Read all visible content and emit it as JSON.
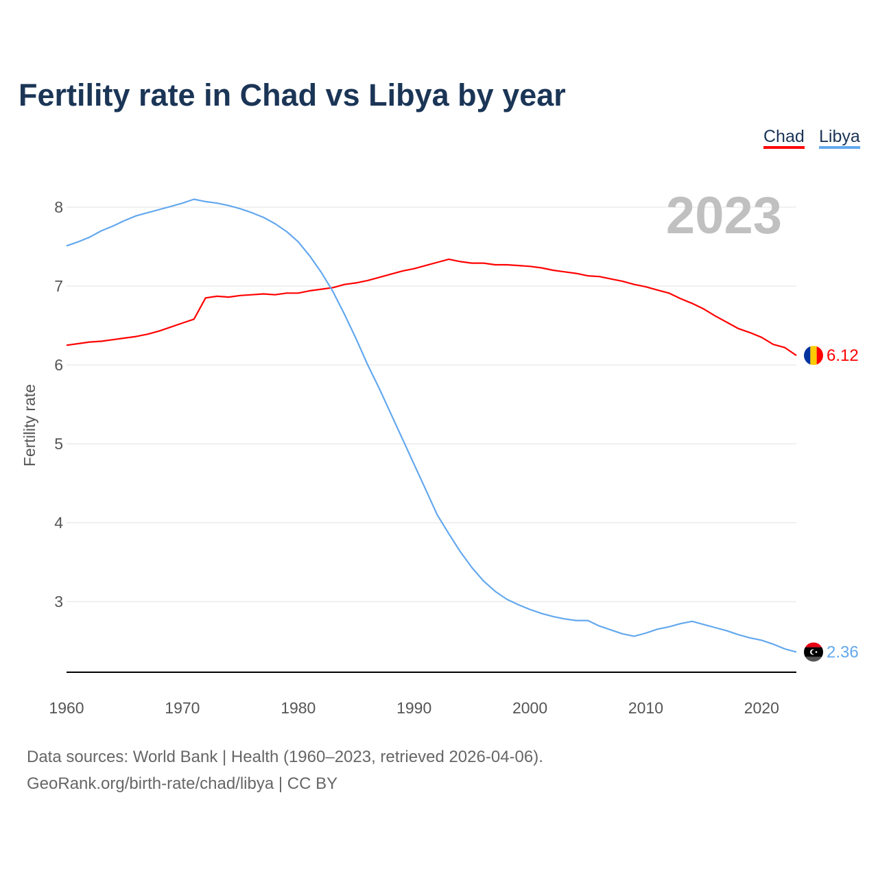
{
  "chart_data": {
    "type": "line",
    "title": "Fertility rate in Chad vs Libya by year",
    "ylabel": "Fertility rate",
    "xlabel": "",
    "xlim": [
      1960,
      2023
    ],
    "ylim": [
      2.1,
      8.6
    ],
    "x_ticks": [
      "1960",
      "1970",
      "1980",
      "1990",
      "2000",
      "2010",
      "2020"
    ],
    "y_ticks": [
      "3",
      "4",
      "5",
      "6",
      "7",
      "8"
    ],
    "grid": true,
    "legend_placement": "top-right",
    "current_year": "2023",
    "series": [
      {
        "name": "Chad",
        "color": "#ff0000",
        "end_label": "6.12",
        "values": [
          6.25,
          6.27,
          6.29,
          6.3,
          6.32,
          6.34,
          6.36,
          6.39,
          6.43,
          6.48,
          6.53,
          6.58,
          6.85,
          6.87,
          6.86,
          6.88,
          6.89,
          6.9,
          6.89,
          6.91,
          6.91,
          6.94,
          6.96,
          6.98,
          7.02,
          7.04,
          7.07,
          7.11,
          7.15,
          7.19,
          7.22,
          7.26,
          7.3,
          7.34,
          7.31,
          7.29,
          7.29,
          7.27,
          7.27,
          7.26,
          7.25,
          7.23,
          7.2,
          7.18,
          7.16,
          7.13,
          7.12,
          7.09,
          7.06,
          7.02,
          6.99,
          6.95,
          6.91,
          6.84,
          6.78,
          6.71,
          6.62,
          6.54,
          6.46,
          6.41,
          6.35,
          6.26,
          6.22,
          6.12
        ]
      },
      {
        "name": "Libya",
        "color": "#63a8ee",
        "end_label": "2.36",
        "values": [
          7.51,
          7.56,
          7.62,
          7.7,
          7.76,
          7.83,
          7.89,
          7.93,
          7.97,
          8.01,
          8.05,
          8.1,
          8.07,
          8.05,
          8.02,
          7.98,
          7.93,
          7.87,
          7.79,
          7.69,
          7.56,
          7.38,
          7.17,
          6.93,
          6.64,
          6.33,
          6.0,
          5.7,
          5.38,
          5.06,
          4.74,
          4.42,
          4.1,
          3.86,
          3.63,
          3.43,
          3.26,
          3.13,
          3.03,
          2.96,
          2.9,
          2.85,
          2.81,
          2.78,
          2.76,
          2.76,
          2.69,
          2.64,
          2.59,
          2.56,
          2.6,
          2.65,
          2.68,
          2.72,
          2.75,
          2.71,
          2.67,
          2.63,
          2.58,
          2.54,
          2.51,
          2.46,
          2.4,
          2.36
        ]
      }
    ]
  },
  "footer": {
    "line1": "Data sources: World Bank | Health (1960–2023, retrieved 2026-04-06).",
    "line2": "GeoRank.org/birth-rate/chad/libya | CC BY"
  }
}
